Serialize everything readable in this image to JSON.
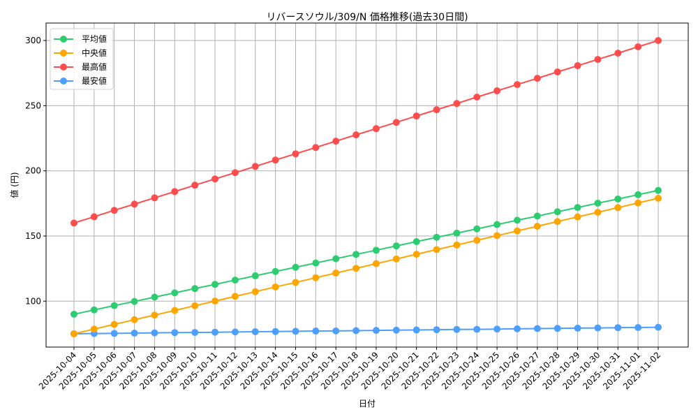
{
  "chart_data": {
    "type": "line",
    "title": "リバースソウル/309/N 価格推移(過去30日間)",
    "xlabel": "日付",
    "ylabel": "値 (円)",
    "ylim": [
      64.8,
      313.4
    ],
    "yticks": [
      100,
      150,
      200,
      250,
      300
    ],
    "grid": true,
    "legend_position": "upper left",
    "x": [
      "2025-10-04",
      "2025-10-05",
      "2025-10-06",
      "2025-10-07",
      "2025-10-08",
      "2025-10-09",
      "2025-10-10",
      "2025-10-11",
      "2025-10-12",
      "2025-10-13",
      "2025-10-14",
      "2025-10-15",
      "2025-10-16",
      "2025-10-17",
      "2025-10-18",
      "2025-10-19",
      "2025-10-20",
      "2025-10-21",
      "2025-10-22",
      "2025-10-23",
      "2025-10-24",
      "2025-10-25",
      "2025-10-26",
      "2025-10-27",
      "2025-10-28",
      "2025-10-29",
      "2025-10-30",
      "2025-10-31",
      "2025-11-01",
      "2025-11-02"
    ],
    "series": [
      {
        "name": "平均値",
        "color": "#2ecc71",
        "values": [
          90.0,
          93.3,
          96.6,
          99.8,
          103.1,
          106.4,
          109.7,
          112.9,
          116.2,
          119.5,
          122.8,
          126.0,
          129.3,
          132.6,
          135.9,
          139.1,
          142.4,
          145.7,
          149.0,
          152.2,
          155.5,
          158.8,
          162.1,
          165.3,
          168.6,
          171.9,
          175.2,
          178.4,
          181.7,
          185.0
        ]
      },
      {
        "name": "中央値",
        "color": "#ffa500",
        "values": [
          75.0,
          78.6,
          82.2,
          85.8,
          89.3,
          92.9,
          96.5,
          100.1,
          103.7,
          107.3,
          110.9,
          114.4,
          118.0,
          121.6,
          125.2,
          128.8,
          132.4,
          136.0,
          139.6,
          143.1,
          146.7,
          150.3,
          153.9,
          157.5,
          161.1,
          164.7,
          168.2,
          171.8,
          175.4,
          179.0
        ]
      },
      {
        "name": "最高値",
        "color": "#ff4d4d",
        "values": [
          160.0,
          164.8,
          169.7,
          174.5,
          179.3,
          184.1,
          189.0,
          193.8,
          198.6,
          203.4,
          208.3,
          213.1,
          217.9,
          222.8,
          227.6,
          232.4,
          237.2,
          242.1,
          246.9,
          251.7,
          256.6,
          261.4,
          266.2,
          271.0,
          275.9,
          280.7,
          285.5,
          290.3,
          295.2,
          300.0
        ]
      },
      {
        "name": "最安値",
        "color": "#4d9fff",
        "values": [
          75.0,
          75.2,
          75.3,
          75.5,
          75.7,
          75.9,
          76.0,
          76.2,
          76.4,
          76.6,
          76.7,
          76.9,
          77.1,
          77.2,
          77.4,
          77.6,
          77.8,
          77.9,
          78.1,
          78.3,
          78.4,
          78.6,
          78.8,
          79.0,
          79.1,
          79.3,
          79.5,
          79.7,
          79.8,
          80.0
        ]
      }
    ]
  }
}
